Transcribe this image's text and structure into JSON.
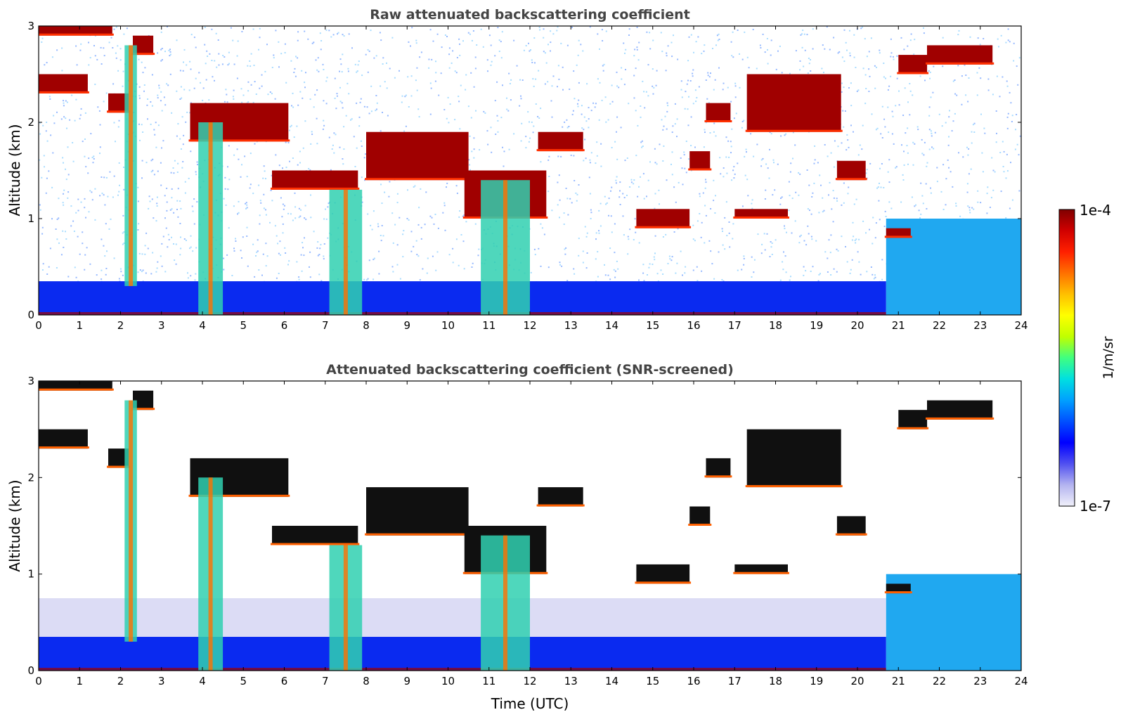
{
  "chart_data": [
    {
      "type": "heatmap",
      "title": "Raw attenuated backscattering coefficient",
      "xlabel": "",
      "ylabel": "Altitude (km)",
      "xlim": [
        0,
        24
      ],
      "ylim": [
        0,
        3
      ],
      "xticks": [
        0,
        1,
        2,
        3,
        4,
        5,
        6,
        7,
        8,
        9,
        10,
        11,
        12,
        13,
        14,
        15,
        16,
        17,
        18,
        19,
        20,
        21,
        22,
        23,
        24
      ],
      "yticks": [
        0,
        1,
        2,
        3
      ],
      "features": [
        {
          "kind": "boundary_layer",
          "x": [
            0,
            20.7
          ],
          "y": [
            0,
            0.35
          ]
        },
        {
          "kind": "aerosol",
          "x": [
            20.7,
            24
          ],
          "y": [
            0,
            1.0
          ]
        },
        {
          "kind": "cloud",
          "x": [
            0,
            1.2
          ],
          "y": [
            2.3,
            2.5
          ]
        },
        {
          "kind": "cloud",
          "x": [
            0,
            1.8
          ],
          "y": [
            2.9,
            3.0
          ]
        },
        {
          "kind": "cloud",
          "x": [
            1.7,
            2.2
          ],
          "y": [
            2.1,
            2.3
          ]
        },
        {
          "kind": "cloud",
          "x": [
            2.3,
            2.8
          ],
          "y": [
            2.7,
            2.9
          ]
        },
        {
          "kind": "cloud",
          "x": [
            3.7,
            6.1
          ],
          "y": [
            1.8,
            2.2
          ]
        },
        {
          "kind": "cloud",
          "x": [
            5.7,
            7.8
          ],
          "y": [
            1.3,
            1.5
          ]
        },
        {
          "kind": "cloud",
          "x": [
            8.0,
            10.5
          ],
          "y": [
            1.4,
            1.9
          ]
        },
        {
          "kind": "cloud",
          "x": [
            10.4,
            12.4
          ],
          "y": [
            1.0,
            1.5
          ]
        },
        {
          "kind": "cloud",
          "x": [
            12.2,
            13.3
          ],
          "y": [
            1.7,
            1.9
          ]
        },
        {
          "kind": "cloud",
          "x": [
            14.6,
            15.9
          ],
          "y": [
            0.9,
            1.1
          ]
        },
        {
          "kind": "cloud",
          "x": [
            15.9,
            16.4
          ],
          "y": [
            1.5,
            1.7
          ]
        },
        {
          "kind": "cloud",
          "x": [
            16.3,
            16.9
          ],
          "y": [
            2.0,
            2.2
          ]
        },
        {
          "kind": "cloud",
          "x": [
            17.0,
            18.3
          ],
          "y": [
            1.0,
            1.1
          ]
        },
        {
          "kind": "cloud",
          "x": [
            17.3,
            19.6
          ],
          "y": [
            1.9,
            2.5
          ]
        },
        {
          "kind": "cloud",
          "x": [
            19.5,
            20.2
          ],
          "y": [
            1.4,
            1.6
          ]
        },
        {
          "kind": "cloud",
          "x": [
            20.7,
            21.3
          ],
          "y": [
            0.8,
            0.9
          ]
        },
        {
          "kind": "cloud",
          "x": [
            21.0,
            21.7
          ],
          "y": [
            2.5,
            2.7
          ]
        },
        {
          "kind": "cloud",
          "x": [
            21.7,
            23.3
          ],
          "y": [
            2.6,
            2.8
          ]
        },
        {
          "kind": "fallstreak",
          "x": [
            2.1,
            2.4
          ],
          "y": [
            0.3,
            2.8
          ]
        },
        {
          "kind": "fallstreak",
          "x": [
            3.9,
            4.5
          ],
          "y": [
            0,
            2.0
          ]
        },
        {
          "kind": "fallstreak",
          "x": [
            7.1,
            7.9
          ],
          "y": [
            0,
            1.3
          ]
        },
        {
          "kind": "fallstreak",
          "x": [
            10.8,
            12.0
          ],
          "y": [
            0,
            1.4
          ]
        }
      ]
    },
    {
      "type": "heatmap",
      "title": "Attenuated backscattering coefficient (SNR-screened)",
      "xlabel": "Time (UTC)",
      "ylabel": "Altitude (km)",
      "xlim": [
        0,
        24
      ],
      "ylim": [
        0,
        3
      ],
      "xticks": [
        0,
        1,
        2,
        3,
        4,
        5,
        6,
        7,
        8,
        9,
        10,
        11,
        12,
        13,
        14,
        15,
        16,
        17,
        18,
        19,
        20,
        21,
        22,
        23,
        24
      ],
      "yticks": [
        0,
        1,
        2,
        3
      ],
      "features": [
        {
          "kind": "boundary_layer",
          "x": [
            0,
            20.7
          ],
          "y": [
            0,
            0.35
          ]
        },
        {
          "kind": "faint_layer",
          "x": [
            0,
            20.7
          ],
          "y": [
            0.35,
            0.75
          ]
        },
        {
          "kind": "aerosol",
          "x": [
            20.7,
            24
          ],
          "y": [
            0,
            1.0
          ]
        },
        {
          "kind": "cloud",
          "x": [
            0,
            1.2
          ],
          "y": [
            2.3,
            2.5
          ]
        },
        {
          "kind": "cloud",
          "x": [
            0,
            1.8
          ],
          "y": [
            2.9,
            3.0
          ]
        },
        {
          "kind": "cloud",
          "x": [
            1.7,
            2.2
          ],
          "y": [
            2.1,
            2.3
          ]
        },
        {
          "kind": "cloud",
          "x": [
            2.3,
            2.8
          ],
          "y": [
            2.7,
            2.9
          ]
        },
        {
          "kind": "cloud",
          "x": [
            3.7,
            6.1
          ],
          "y": [
            1.8,
            2.2
          ]
        },
        {
          "kind": "cloud",
          "x": [
            5.7,
            7.8
          ],
          "y": [
            1.3,
            1.5
          ]
        },
        {
          "kind": "cloud",
          "x": [
            8.0,
            10.5
          ],
          "y": [
            1.4,
            1.9
          ]
        },
        {
          "kind": "cloud",
          "x": [
            10.4,
            12.4
          ],
          "y": [
            1.0,
            1.5
          ]
        },
        {
          "kind": "cloud",
          "x": [
            12.2,
            13.3
          ],
          "y": [
            1.7,
            1.9
          ]
        },
        {
          "kind": "cloud",
          "x": [
            14.6,
            15.9
          ],
          "y": [
            0.9,
            1.1
          ]
        },
        {
          "kind": "cloud",
          "x": [
            15.9,
            16.4
          ],
          "y": [
            1.5,
            1.7
          ]
        },
        {
          "kind": "cloud",
          "x": [
            16.3,
            16.9
          ],
          "y": [
            2.0,
            2.2
          ]
        },
        {
          "kind": "cloud",
          "x": [
            17.0,
            18.3
          ],
          "y": [
            1.0,
            1.1
          ]
        },
        {
          "kind": "cloud",
          "x": [
            17.3,
            19.6
          ],
          "y": [
            1.9,
            2.5
          ]
        },
        {
          "kind": "cloud",
          "x": [
            19.5,
            20.2
          ],
          "y": [
            1.4,
            1.6
          ]
        },
        {
          "kind": "cloud",
          "x": [
            20.7,
            21.3
          ],
          "y": [
            0.8,
            0.9
          ]
        },
        {
          "kind": "cloud",
          "x": [
            21.0,
            21.7
          ],
          "y": [
            2.5,
            2.7
          ]
        },
        {
          "kind": "cloud",
          "x": [
            21.7,
            23.3
          ],
          "y": [
            2.6,
            2.8
          ]
        },
        {
          "kind": "fallstreak",
          "x": [
            2.1,
            2.4
          ],
          "y": [
            0.3,
            2.8
          ]
        },
        {
          "kind": "fallstreak",
          "x": [
            3.9,
            4.5
          ],
          "y": [
            0,
            2.0
          ]
        },
        {
          "kind": "fallstreak",
          "x": [
            7.1,
            7.9
          ],
          "y": [
            0,
            1.3
          ]
        },
        {
          "kind": "fallstreak",
          "x": [
            10.8,
            12.0
          ],
          "y": [
            0,
            1.4
          ]
        }
      ]
    }
  ],
  "colorbar": {
    "max_label": "1e-4",
    "min_label": "1e-7",
    "label": "1/m/sr",
    "colormap": [
      "#f0f0fa",
      "#b4b4f0",
      "#5050f0",
      "#0000ff",
      "#0050ff",
      "#00a0ff",
      "#00e0e0",
      "#40ff80",
      "#c0ff00",
      "#ffff00",
      "#ffc000",
      "#ff7000",
      "#ff2000",
      "#d00000",
      "#800000"
    ]
  }
}
